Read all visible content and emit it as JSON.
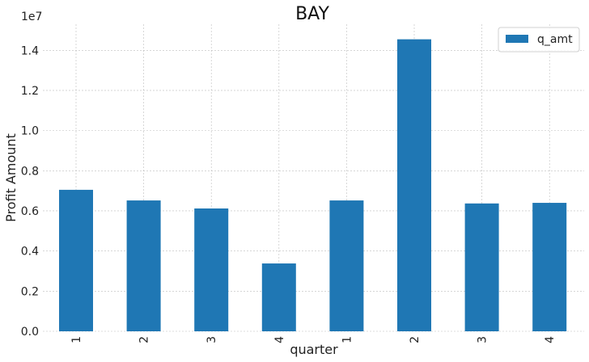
{
  "chart_data": {
    "type": "bar",
    "title": "BAY",
    "xlabel": "quarter",
    "ylabel": "Profit Amount",
    "offset_text": "1e7",
    "categories": [
      "1",
      "2",
      "3",
      "4",
      "1",
      "2",
      "3",
      "4"
    ],
    "series": [
      {
        "name": "q_amt",
        "color": "#1f77b4",
        "values": [
          7050000,
          6520000,
          6120000,
          3380000,
          6520000,
          14550000,
          6370000,
          6400000
        ]
      }
    ],
    "ylim": [
      0,
      15300000
    ],
    "yticks": [
      0,
      2000000,
      4000000,
      6000000,
      8000000,
      10000000,
      12000000,
      14000000
    ],
    "ytick_labels": [
      "0.0",
      "0.2",
      "0.4",
      "0.6",
      "0.8",
      "1.0",
      "1.2",
      "1.4"
    ],
    "grid": true,
    "legend_position": "top-right"
  }
}
